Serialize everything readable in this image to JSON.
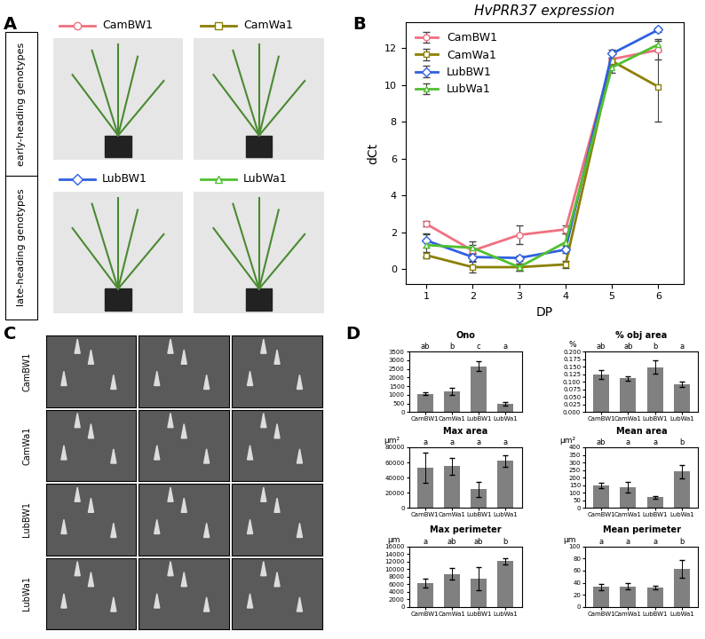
{
  "panel_labels": [
    "A",
    "B",
    "C",
    "D"
  ],
  "photo_panel": {
    "groups": [
      "early-heading genotypes",
      "late-heading genotypes"
    ],
    "genotypes": [
      {
        "name": "CamBW1",
        "color": "#f07080",
        "marker": "circle"
      },
      {
        "name": "CamWa1",
        "color": "#8b8000",
        "marker": "square"
      },
      {
        "name": "LubBW1",
        "color": "#3060e0",
        "marker": "diamond"
      },
      {
        "name": "LubWa1",
        "color": "#50c030",
        "marker": "triangle"
      }
    ]
  },
  "sem_panel": {
    "genotypes": [
      "CamBW1",
      "CamWa1",
      "LubBW1",
      "LubWa1"
    ]
  },
  "chart_data": [
    {
      "type": "line",
      "title": "HvPRR37 expression",
      "xlabel": "DP",
      "ylabel": "dCt",
      "x": [
        1,
        2,
        3,
        4,
        5,
        6
      ],
      "xlim": [
        0.55,
        6.55
      ],
      "xticks": [
        1,
        2,
        3,
        4,
        5,
        6
      ],
      "ylim": [
        -0.8,
        13.4
      ],
      "yticks": [
        0,
        2,
        4,
        6,
        8,
        10,
        12
      ],
      "legend": "upper left",
      "grid": false,
      "series": [
        {
          "name": "CamBW1",
          "color": "#f07080",
          "marker": "circle",
          "values": [
            2.45,
            1.0,
            1.85,
            2.15,
            11.4,
            11.9
          ],
          "errors": [
            0.15,
            0.3,
            0.5,
            0.2,
            0.3,
            0.5
          ]
        },
        {
          "name": "CamWa1",
          "color": "#8b8000",
          "marker": "square",
          "values": [
            0.75,
            0.1,
            0.1,
            0.25,
            11.3,
            9.9
          ],
          "errors": [
            0.15,
            0.3,
            0.2,
            0.2,
            0.2,
            1.9
          ]
        },
        {
          "name": "LubBW1",
          "color": "#3060e0",
          "marker": "diamond",
          "values": [
            1.55,
            0.65,
            0.6,
            1.05,
            11.7,
            13.0
          ],
          "errors": [
            0.4,
            0.2,
            0.15,
            0.2,
            0.2,
            0.1
          ]
        },
        {
          "name": "LubWa1",
          "color": "#50c030",
          "marker": "triangle",
          "values": [
            1.3,
            1.15,
            0.1,
            1.45,
            10.95,
            12.2
          ],
          "errors": [
            0.6,
            0.35,
            0.2,
            0.5,
            0.3,
            0.3
          ]
        }
      ]
    },
    {
      "type": "bar",
      "title": "Ono",
      "color": "#808080",
      "categories": [
        "CamBW1",
        "CamWa1",
        "LubBW1",
        "LubWa1"
      ],
      "values": [
        1050,
        1200,
        2650,
        500
      ],
      "errors": [
        80,
        200,
        280,
        100
      ],
      "annotations": [
        "ab",
        "b",
        "c",
        "a"
      ],
      "ylim": [
        0,
        3500
      ],
      "yticks": [
        0,
        500,
        1000,
        1500,
        2000,
        2500,
        3000,
        3500
      ]
    },
    {
      "type": "bar",
      "title": "% obj area",
      "ylabel": "%",
      "color": "#808080",
      "categories": [
        "CamBW1",
        "CamWa1",
        "LubBW1",
        "LubWa1"
      ],
      "values": [
        0.124,
        0.111,
        0.148,
        0.092
      ],
      "errors": [
        0.015,
        0.008,
        0.022,
        0.01
      ],
      "annotations": [
        "ab",
        "ab",
        "b",
        "a"
      ],
      "ylim": [
        0,
        0.2
      ],
      "yticks": [
        {
          "value": 0,
          "label": "0.000"
        },
        {
          "value": 0.025,
          "label": "0.025"
        },
        {
          "value": 0.05,
          "label": "0.050"
        },
        {
          "value": 0.075,
          "label": "0.075"
        },
        {
          "value": 0.1,
          "label": "0.100"
        },
        {
          "value": 0.125,
          "label": "0.125"
        },
        {
          "value": 0.15,
          "label": "0.150"
        },
        {
          "value": 0.175,
          "label": "0.175"
        },
        {
          "value": 0.2,
          "label": "0.200"
        }
      ]
    },
    {
      "type": "bar",
      "title": "Max area",
      "ylabel": "µm²",
      "color": "#808080",
      "categories": [
        "CamBW1",
        "CamWa1",
        "LubBW1",
        "LubWa1"
      ],
      "values": [
        53500,
        55000,
        24500,
        62000
      ],
      "errors": [
        20000,
        11000,
        10000,
        8000
      ],
      "annotations": [
        "a",
        "a",
        "a",
        "a"
      ],
      "ylim": [
        0,
        80000
      ],
      "yticks": [
        0,
        20000,
        40000,
        60000,
        80000
      ]
    },
    {
      "type": "bar",
      "title": "Mean area",
      "ylabel": "µm²",
      "color": "#808080",
      "categories": [
        "CamBW1",
        "CamWa1",
        "LubBW1",
        "LubWa1"
      ],
      "values": [
        150,
        138,
        70,
        240
      ],
      "errors": [
        18,
        35,
        8,
        45
      ],
      "annotations": [
        "ab",
        "a",
        "a",
        "b"
      ],
      "ylim": [
        0,
        400
      ],
      "yticks": [
        0,
        50,
        100,
        150,
        200,
        250,
        300,
        350,
        400
      ]
    },
    {
      "type": "bar",
      "title": "Max perimeter",
      "ylabel": "µm",
      "color": "#808080",
      "categories": [
        "CamBW1",
        "CamWa1",
        "LubBW1",
        "LubWa1"
      ],
      "values": [
        6300,
        8700,
        7500,
        12100
      ],
      "errors": [
        1200,
        1500,
        3000,
        800
      ],
      "annotations": [
        "a",
        "ab",
        "ab",
        "b"
      ],
      "ylim": [
        0,
        16000
      ],
      "yticks": [
        0,
        2000,
        4000,
        6000,
        8000,
        10000,
        12000,
        14000,
        16000
      ]
    },
    {
      "type": "bar",
      "title": "Mean perimeter",
      "ylabel": "µm",
      "color": "#808080",
      "categories": [
        "CamBW1",
        "CamWa1",
        "LubBW1",
        "LubWa1"
      ],
      "values": [
        33,
        34,
        32,
        63
      ],
      "errors": [
        5,
        5,
        3,
        15
      ],
      "annotations": [
        "a",
        "a",
        "a",
        "b"
      ],
      "ylim": [
        0,
        100
      ],
      "yticks": [
        0,
        20,
        40,
        60,
        80,
        100
      ]
    }
  ]
}
